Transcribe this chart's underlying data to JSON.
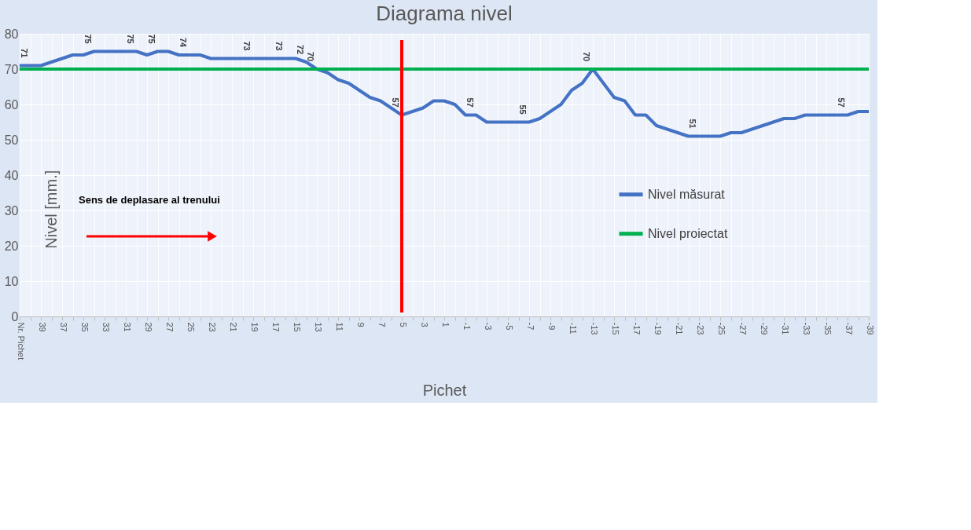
{
  "chart_data": {
    "type": "line",
    "title": "Diagrama nivel",
    "xlabel": "Pichet",
    "ylabel": "Nivel [mm.]",
    "categories": [
      "Nr. Pichet",
      null,
      "39",
      null,
      "37",
      null,
      "35",
      null,
      "33",
      null,
      "31",
      null,
      "29",
      null,
      "27",
      null,
      "25",
      null,
      "23",
      null,
      "21",
      null,
      "19",
      null,
      "17",
      null,
      "15",
      null,
      "13",
      null,
      "11",
      null,
      "9",
      null,
      "7",
      null,
      "5",
      null,
      "3",
      null,
      "1",
      null,
      "-1",
      null,
      "-3",
      null,
      "-5",
      null,
      "-7",
      null,
      "-9",
      null,
      "-11",
      null,
      "-13",
      null,
      "-15",
      null,
      "-17",
      null,
      "-19",
      null,
      "-21",
      null,
      "-23",
      null,
      "-25",
      null,
      "-27",
      null,
      "-29",
      null,
      "-31",
      null,
      "-33",
      null,
      "-35",
      null,
      "-37",
      null,
      "-39"
    ],
    "series": [
      {
        "name": "Nivel măsurat",
        "color": "#4472c4",
        "values": [
          71,
          71,
          71,
          72,
          73,
          74,
          74,
          75,
          75,
          75,
          75,
          75,
          74,
          75,
          75,
          74,
          74,
          74,
          73,
          73,
          73,
          73,
          73,
          73,
          73,
          73,
          73,
          72,
          70,
          69,
          67,
          66,
          64,
          62,
          61,
          59,
          57,
          58,
          59,
          61,
          61,
          60,
          57,
          57,
          55,
          55,
          55,
          55,
          55,
          56,
          58,
          60,
          64,
          66,
          70,
          66,
          62,
          61,
          57,
          57,
          54,
          53,
          52,
          51,
          51,
          51,
          51,
          52,
          52,
          53,
          54,
          55,
          56,
          56,
          57,
          57,
          57,
          57,
          57,
          58,
          58
        ],
        "value_labels": [
          null,
          "71",
          null,
          null,
          null,
          null,
          null,
          "75",
          null,
          null,
          null,
          "75",
          null,
          "75",
          null,
          null,
          "74",
          null,
          null,
          null,
          null,
          null,
          "73",
          null,
          null,
          "73",
          null,
          "72",
          "70",
          null,
          null,
          null,
          null,
          null,
          null,
          null,
          "57",
          null,
          null,
          null,
          null,
          null,
          null,
          "57",
          null,
          null,
          null,
          null,
          "55",
          null,
          null,
          null,
          null,
          null,
          "70",
          null,
          null,
          null,
          null,
          null,
          null,
          null,
          null,
          null,
          "51",
          null,
          null,
          null,
          null,
          null,
          null,
          null,
          null,
          null,
          null,
          null,
          null,
          null,
          "57",
          null,
          null
        ]
      },
      {
        "name": "Nivel proiectat",
        "color": "#00b050",
        "values": [
          70,
          70,
          70,
          70,
          70,
          70,
          70,
          70,
          70,
          70,
          70,
          70,
          70,
          70,
          70,
          70,
          70,
          70,
          70,
          70,
          70,
          70,
          70,
          70,
          70,
          70,
          70,
          70,
          70,
          70,
          70,
          70,
          70,
          70,
          70,
          70,
          70,
          70,
          70,
          70,
          70,
          70,
          70,
          70,
          70,
          70,
          70,
          70,
          70,
          70,
          70,
          70,
          70,
          70,
          70,
          70,
          70,
          70,
          70,
          70,
          70,
          70,
          70,
          70,
          70,
          70,
          70,
          70,
          70,
          70,
          70,
          70,
          70,
          70,
          70,
          70,
          70,
          70,
          70,
          70,
          70
        ]
      }
    ],
    "ylim": [
      0,
      80
    ],
    "yticks": [
      0,
      10,
      20,
      30,
      40,
      50,
      60,
      70,
      80
    ],
    "grid": true,
    "legend": "right",
    "ref_lines": [
      {
        "axis": "x",
        "value": "5",
        "label": null,
        "color": "#ff0000"
      }
    ],
    "annotations": [
      "Sens de deplasare al trenului"
    ]
  }
}
